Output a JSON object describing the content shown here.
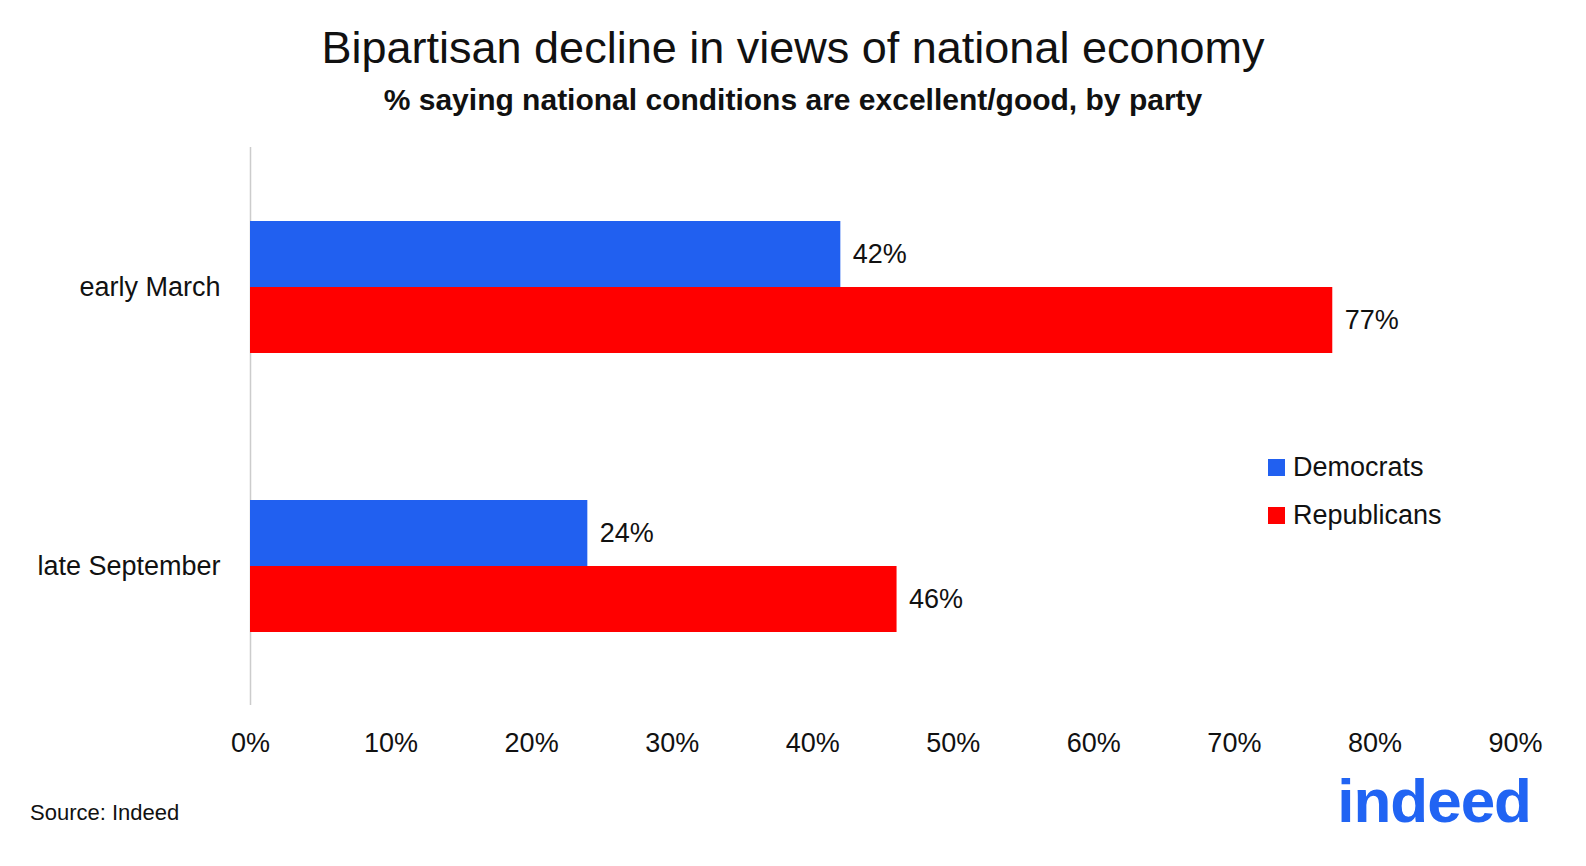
{
  "chart_data": {
    "type": "bar",
    "title": "Bipartisan decline in views of national economy",
    "subtitle": "% saying national conditions are excellent/good, by party",
    "orientation": "horizontal",
    "categories": [
      "early March",
      "late September"
    ],
    "series": [
      {
        "name": "Democrats",
        "color": "#2160f0",
        "values": [
          42,
          24
        ],
        "value_labels": [
          "42%",
          "24%"
        ]
      },
      {
        "name": "Republicans",
        "color": "#ff0000",
        "values": [
          77,
          46
        ],
        "value_labels": [
          "77%",
          "46%"
        ]
      }
    ],
    "xlim": [
      0,
      90
    ],
    "xticks": [
      {
        "value": 0,
        "label": "0%"
      },
      {
        "value": 10,
        "label": "10%"
      },
      {
        "value": 20,
        "label": "20%"
      },
      {
        "value": 30,
        "label": "30%"
      },
      {
        "value": 40,
        "label": "40%"
      },
      {
        "value": 50,
        "label": "50%"
      },
      {
        "value": 60,
        "label": "60%"
      },
      {
        "value": 70,
        "label": "70%"
      },
      {
        "value": 80,
        "label": "80%"
      },
      {
        "value": 90,
        "label": "90%"
      }
    ],
    "data_labels": true,
    "legend": "right",
    "grid": false,
    "source": "Source: Indeed",
    "logo": "indeed"
  }
}
